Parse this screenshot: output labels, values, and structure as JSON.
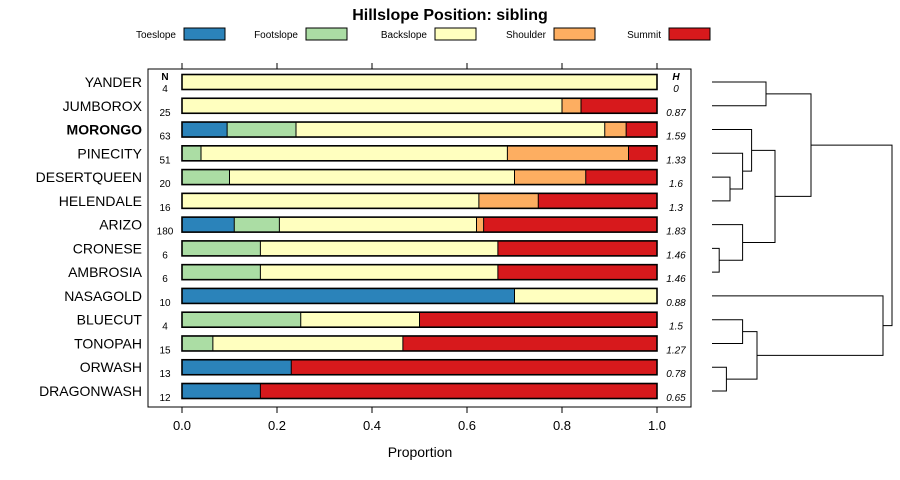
{
  "chart_data": {
    "type": "bar",
    "stacked": true,
    "orientation": "horizontal",
    "title": "Hillslope Position: sibling",
    "xlabel": "Proportion",
    "ylabel": "",
    "xlim": [
      0,
      1
    ],
    "xticks": [
      "0.0",
      "0.2",
      "0.4",
      "0.6",
      "0.8",
      "1.0"
    ],
    "legend_position": "top",
    "n_header": "N",
    "h_header": "H",
    "highlighted_category": "MORONGO",
    "series": [
      {
        "name": "Toeslope",
        "color": "#2b83ba",
        "values": [
          0,
          0,
          0.095,
          0,
          0,
          0,
          0.11,
          0,
          0,
          0.7,
          0,
          0,
          0.23,
          0.165
        ]
      },
      {
        "name": "Footslope",
        "color": "#abdda4",
        "values": [
          0,
          0,
          0.145,
          0.04,
          0.1,
          0,
          0.095,
          0.165,
          0.165,
          0,
          0.25,
          0.065,
          0,
          0
        ]
      },
      {
        "name": "Backslope",
        "color": "#ffffbf",
        "values": [
          1.0,
          0.8,
          0.65,
          0.645,
          0.6,
          0.625,
          0.415,
          0.5,
          0.5,
          0.3,
          0.25,
          0.4,
          0,
          0
        ]
      },
      {
        "name": "Shoulder",
        "color": "#fdae61",
        "values": [
          0,
          0.04,
          0.045,
          0.255,
          0.15,
          0.125,
          0.015,
          0,
          0,
          0,
          0,
          0,
          0,
          0
        ]
      },
      {
        "name": "Summit",
        "color": "#d7191c",
        "values": [
          0,
          0.16,
          0.065,
          0.06,
          0.15,
          0.25,
          0.365,
          0.335,
          0.335,
          0,
          0.5,
          0.535,
          0.77,
          0.835
        ]
      }
    ],
    "categories": [
      "YANDER",
      "JUMBOROX",
      "MORONGO",
      "PINECITY",
      "DESERTQUEEN",
      "HELENDALE",
      "ARIZO",
      "CRONESE",
      "AMBROSIA",
      "NASAGOLD",
      "BLUECUT",
      "TONOPAH",
      "ORWASH",
      "DRAGONWASH"
    ],
    "n": [
      "4",
      "25",
      "63",
      "51",
      "20",
      "16",
      "180",
      "6",
      "6",
      "10",
      "4",
      "15",
      "13",
      "12"
    ],
    "h": [
      "0",
      "0.87",
      "1.59",
      "1.33",
      "1.6",
      "1.3",
      "1.83",
      "1.46",
      "1.46",
      "0.88",
      "1.5",
      "1.27",
      "0.78",
      "0.65"
    ],
    "dendrogram": {
      "description": "hierarchical clustering of categories",
      "heights": {
        "YANDER-JUMBOROX": 0.3,
        "DESERTQUEEN-HELENDALE": 0.1,
        "PINECITY-(DESERTQUEEN,HELENDALE)": 0.17,
        "MORONGO-(PINECITY,...)": 0.22,
        "CRONESE-AMBROSIA": 0.04,
        "ARIZO-(CRONESE,AMBROSIA)": 0.17,
        "(MORONGO..)-(ARIZO..)": 0.35,
        "(YANDER,JUMBOROX)-(MORONGO..ARIZO..)": 0.55,
        "BLUECUT-TONOPAH": 0.17,
        "ORWASH-DRAGONWASH": 0.08,
        "(BLUECUT,TONOPAH)-(ORWASH,DRAGONWASH)": 0.25,
        "NASAGOLD-(BLUECUT..DRAGONWASH)": 0.95,
        "root": 1.0
      }
    }
  }
}
